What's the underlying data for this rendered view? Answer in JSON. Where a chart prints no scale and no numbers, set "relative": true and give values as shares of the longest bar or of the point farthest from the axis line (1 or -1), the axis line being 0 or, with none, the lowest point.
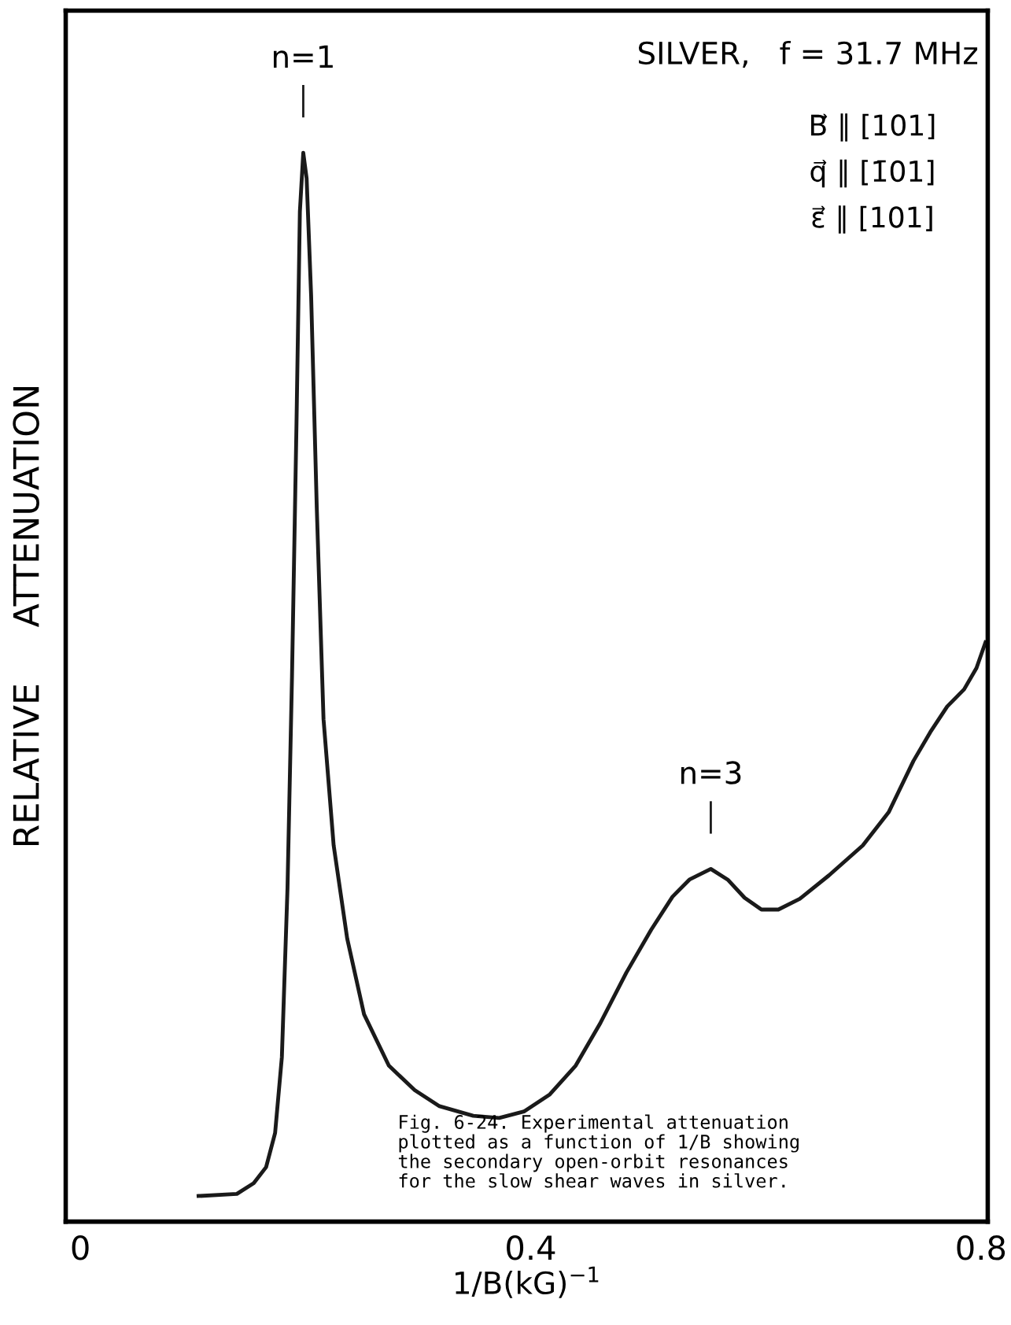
{
  "chart_data": {
    "type": "line",
    "relative": true,
    "xlabel": "1/B(kG)$^{−1}$",
    "ylabel": "RELATIVE     ATTENUATION",
    "x": [
      0.105,
      0.139,
      0.154,
      0.165,
      0.173,
      0.179,
      0.184,
      0.188,
      0.192,
      0.195,
      0.198,
      0.201,
      0.205,
      0.21,
      0.216,
      0.225,
      0.237,
      0.252,
      0.274,
      0.297,
      0.319,
      0.349,
      0.372,
      0.394,
      0.417,
      0.44,
      0.462,
      0.485,
      0.507,
      0.526,
      0.541,
      0.56,
      0.575,
      0.59,
      0.605,
      0.62,
      0.639,
      0.665,
      0.695,
      0.718,
      0.74,
      0.755,
      0.77,
      0.785,
      0.796,
      0.804
    ],
    "series": [
      {
        "color": "#1a1a1a",
        "values": [
          0.024,
          0.026,
          0.036,
          0.051,
          0.083,
          0.154,
          0.312,
          0.51,
          0.747,
          0.945,
          1.0,
          0.976,
          0.866,
          0.668,
          0.47,
          0.352,
          0.265,
          0.194,
          0.146,
          0.123,
          0.108,
          0.099,
          0.097,
          0.103,
          0.119,
          0.146,
          0.186,
          0.233,
          0.273,
          0.304,
          0.32,
          0.33,
          0.32,
          0.303,
          0.292,
          0.292,
          0.302,
          0.324,
          0.352,
          0.383,
          0.431,
          0.458,
          0.482,
          0.498,
          0.518,
          0.542
        ]
      }
    ],
    "xlim": [
      -0.013,
      0.806
    ],
    "xticks": [
      0,
      0.4,
      0.8
    ],
    "grid": false,
    "legend": false,
    "marker": "none",
    "line_style": "solid",
    "annotations": [
      {
        "text": "n=1",
        "x": 0.198,
        "y": 1.0
      },
      {
        "text": "n=3",
        "x": 0.56,
        "y": 0.33
      },
      "SILVER,   f = 31.7 MHz",
      "B⃗ ∥ [101]",
      "q⃗ ∥ [1̄01]",
      "ε⃗ ∥ [101]",
      "Fig. 6-24. Experimental attenuation\nplotted as a function of 1/B showing\nthe secondary open-orbit resonances\nfor the slow shear waves in silver."
    ]
  }
}
